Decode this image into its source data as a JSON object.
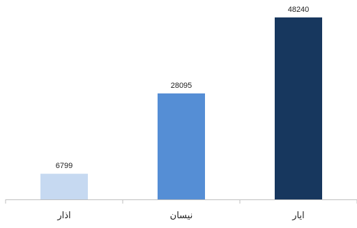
{
  "chart_data": {
    "type": "bar",
    "categories": [
      "اذار",
      "نيسان",
      "ايار"
    ],
    "values": [
      6799,
      28095,
      48240
    ],
    "colors": [
      "#c6d9f1",
      "#558ed5",
      "#17375e"
    ],
    "data_labels": [
      "6799",
      "28095",
      "48240"
    ],
    "title": "",
    "xlabel": "",
    "ylabel": "",
    "ylim": [
      0,
      48240
    ],
    "grid": false,
    "legend": "none"
  }
}
